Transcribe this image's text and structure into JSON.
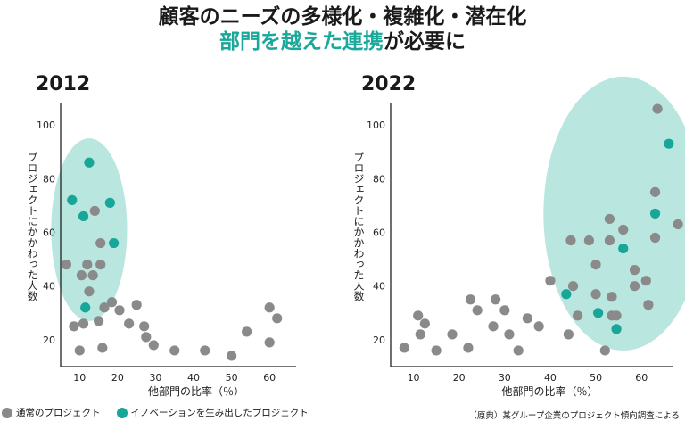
{
  "title": {
    "line1": "顧客のニーズの多様化・複雑化・潜在化",
    "line2_highlight": "部門を越えた連携",
    "line2_rest": "が必要に"
  },
  "colors": {
    "gray": "#8a8a8a",
    "teal": "#17a697",
    "ellipse": "#b9e6df",
    "title_accent": "#1aa89a"
  },
  "legend": {
    "gray_label": "通常のプロジェクト",
    "teal_label": "イノベーションを生み出したプロジェクト"
  },
  "source": "（原典）某グループ企業のプロジェクト傾向調査による",
  "chart_data": [
    {
      "type": "scatter",
      "title": "2012",
      "xlabel": "他部門の比率（％）",
      "ylabel": "プロジェクトにかかわった人数",
      "xlim": [
        5,
        67
      ],
      "ylim": [
        10,
        110
      ],
      "xticks": [
        10,
        20,
        30,
        40,
        50,
        60
      ],
      "yticks": [
        20,
        40,
        60,
        80,
        100
      ],
      "grid": false,
      "highlight_ellipse": {
        "cx": 12.5,
        "cy": 61,
        "rx": 10,
        "ry": 34
      },
      "series": [
        {
          "color": "#8a8a8a",
          "points": [
            [
              6.5,
              48
            ],
            [
              8.5,
              25
            ],
            [
              10,
              16
            ],
            [
              10.5,
              44
            ],
            [
              11,
              26
            ],
            [
              12,
              48
            ],
            [
              12.5,
              38
            ],
            [
              13.5,
              44
            ],
            [
              14,
              68
            ],
            [
              15,
              27
            ],
            [
              15.5,
              48
            ],
            [
              15.5,
              56
            ],
            [
              16,
              17
            ],
            [
              16.5,
              32
            ],
            [
              18.5,
              34
            ],
            [
              20.5,
              31
            ],
            [
              23,
              26
            ],
            [
              25,
              33
            ],
            [
              27.5,
              21
            ],
            [
              27,
              25
            ],
            [
              29.5,
              18
            ],
            [
              35,
              16
            ],
            [
              43,
              16
            ],
            [
              50,
              14
            ],
            [
              54,
              23
            ],
            [
              60,
              32
            ],
            [
              60,
              19
            ],
            [
              62,
              28
            ]
          ]
        },
        {
          "color": "#17a697",
          "points": [
            [
              8,
              72
            ],
            [
              11,
              66
            ],
            [
              12.5,
              86
            ],
            [
              18,
              71
            ],
            [
              19,
              56
            ],
            [
              11.5,
              32
            ]
          ]
        }
      ]
    },
    {
      "type": "scatter",
      "title": "2022",
      "xlabel": "他部門の比率（％）",
      "ylabel": "プロジェクトにかかわった人数",
      "xlim": [
        5,
        67
      ],
      "ylim": [
        10,
        110
      ],
      "xticks": [
        10,
        20,
        30,
        40,
        50,
        60
      ],
      "yticks": [
        20,
        40,
        60,
        80,
        100
      ],
      "grid": false,
      "highlight_ellipse": {
        "cx": 56,
        "cy": 67,
        "rx": 17.5,
        "ry": 51
      },
      "series": [
        {
          "color": "#8a8a8a",
          "points": [
            [
              8,
              17
            ],
            [
              11,
              29
            ],
            [
              11.5,
              22
            ],
            [
              12.5,
              26
            ],
            [
              15,
              16
            ],
            [
              18.5,
              22
            ],
            [
              22,
              17
            ],
            [
              22.5,
              35
            ],
            [
              24,
              31
            ],
            [
              27.5,
              25
            ],
            [
              28,
              35
            ],
            [
              30,
              31
            ],
            [
              31,
              22
            ],
            [
              33,
              16
            ],
            [
              35,
              28
            ],
            [
              37.5,
              25
            ],
            [
              40,
              42
            ],
            [
              44,
              22
            ],
            [
              45,
              40
            ],
            [
              44.5,
              57
            ],
            [
              48.5,
              57
            ],
            [
              50,
              37
            ],
            [
              50,
              48
            ],
            [
              53,
              65
            ],
            [
              53,
              57
            ],
            [
              53.5,
              36
            ],
            [
              53.5,
              29
            ],
            [
              54.5,
              29
            ],
            [
              56,
              61
            ],
            [
              58.5,
              46
            ],
            [
              58.5,
              40
            ],
            [
              61,
              42
            ],
            [
              61.5,
              33
            ],
            [
              63,
              58
            ],
            [
              63,
              75
            ],
            [
              63.5,
              106
            ],
            [
              68,
              63
            ],
            [
              52,
              16
            ],
            [
              46,
              29
            ]
          ]
        },
        {
          "color": "#17a697",
          "points": [
            [
              43.5,
              37
            ],
            [
              50.5,
              30
            ],
            [
              54.5,
              24
            ],
            [
              56,
              54
            ],
            [
              63,
              67
            ],
            [
              66,
              93
            ]
          ]
        }
      ]
    }
  ]
}
